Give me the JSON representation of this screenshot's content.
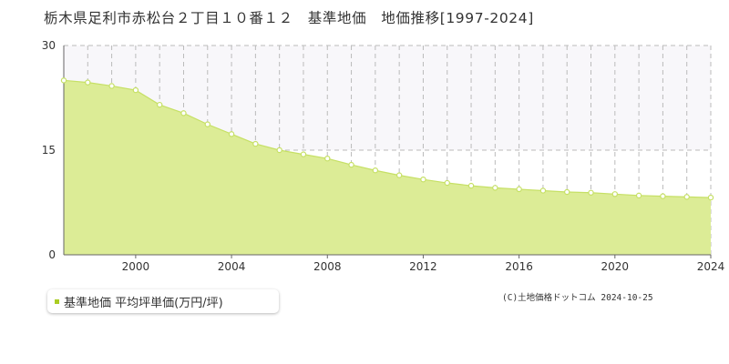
{
  "title": "栃木県足利市赤松台２丁目１０番１２　基準地価　地価推移[1997-2024]",
  "legend": {
    "label": "基準地価 平均坪単価(万円/坪)"
  },
  "copyright": "(C)土地価格ドットコム 2024-10-25",
  "colors": {
    "area_fill": "#dcec96",
    "line": "#c6e065",
    "point_fill": "#ffffff",
    "upper_band": "#f8f7fa",
    "grid": "#bbbbbb",
    "axis": "#666666",
    "legend_marker": "#aacc22"
  },
  "chart_data": {
    "type": "area",
    "title": "栃木県足利市赤松台２丁目１０番１２　基準地価　地価推移[1997-2024]",
    "xlabel": "",
    "ylabel": "",
    "xlim": [
      1997,
      2024
    ],
    "ylim": [
      0,
      30
    ],
    "x_ticks": [
      {
        "value": 2000,
        "label": "2000"
      },
      {
        "value": 2004,
        "label": "2004"
      },
      {
        "value": 2008,
        "label": "2008"
      },
      {
        "value": 2012,
        "label": "2012"
      },
      {
        "value": 2016,
        "label": "2016"
      },
      {
        "value": 2020,
        "label": "2020"
      },
      {
        "value": 2024,
        "label": "2024"
      }
    ],
    "y_ticks": [
      {
        "value": 0,
        "label": "0"
      },
      {
        "value": 15,
        "label": "15"
      },
      {
        "value": 30,
        "label": "30"
      }
    ],
    "grid": true,
    "legend_position": "bottom-left",
    "series": [
      {
        "name": "基準地価 平均坪単価(万円/坪)",
        "x": [
          1997,
          1998,
          1999,
          2000,
          2001,
          2002,
          2003,
          2004,
          2005,
          2006,
          2007,
          2008,
          2009,
          2010,
          2011,
          2012,
          2013,
          2014,
          2015,
          2016,
          2017,
          2018,
          2019,
          2020,
          2021,
          2022,
          2023,
          2024
        ],
        "y": [
          25.0,
          24.7,
          24.2,
          23.6,
          21.5,
          20.3,
          18.7,
          17.3,
          15.9,
          15.0,
          14.4,
          13.8,
          12.9,
          12.1,
          11.4,
          10.8,
          10.3,
          9.9,
          9.6,
          9.4,
          9.2,
          9.0,
          8.9,
          8.7,
          8.5,
          8.4,
          8.3,
          8.2
        ]
      }
    ]
  }
}
